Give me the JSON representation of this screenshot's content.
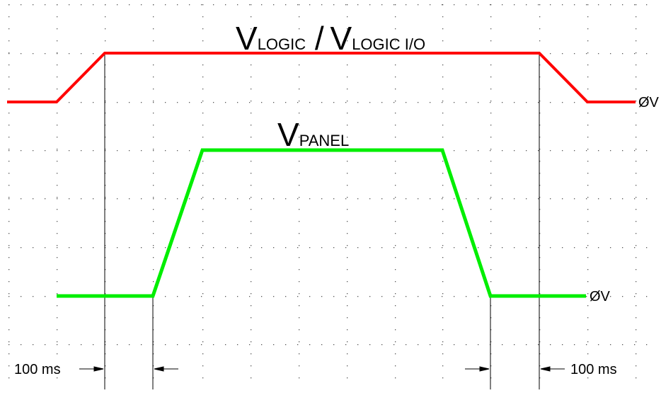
{
  "signals": {
    "logic": {
      "label_main": "V",
      "label_sub": "LOGIC",
      "label_sep": " / ",
      "label_main2": "V",
      "label_sub2": "LOGIC I/O",
      "color": "#ff0000",
      "zero_label": "ØV"
    },
    "panel": {
      "label_main": "V",
      "label_sub": "PANEL",
      "color": "#00ee00",
      "zero_label": "ØV"
    }
  },
  "timing": {
    "left_label": "100 ms",
    "right_label": "100 ms"
  },
  "colors": {
    "grid_dot": "#555555",
    "guide_line": "#000000"
  }
}
